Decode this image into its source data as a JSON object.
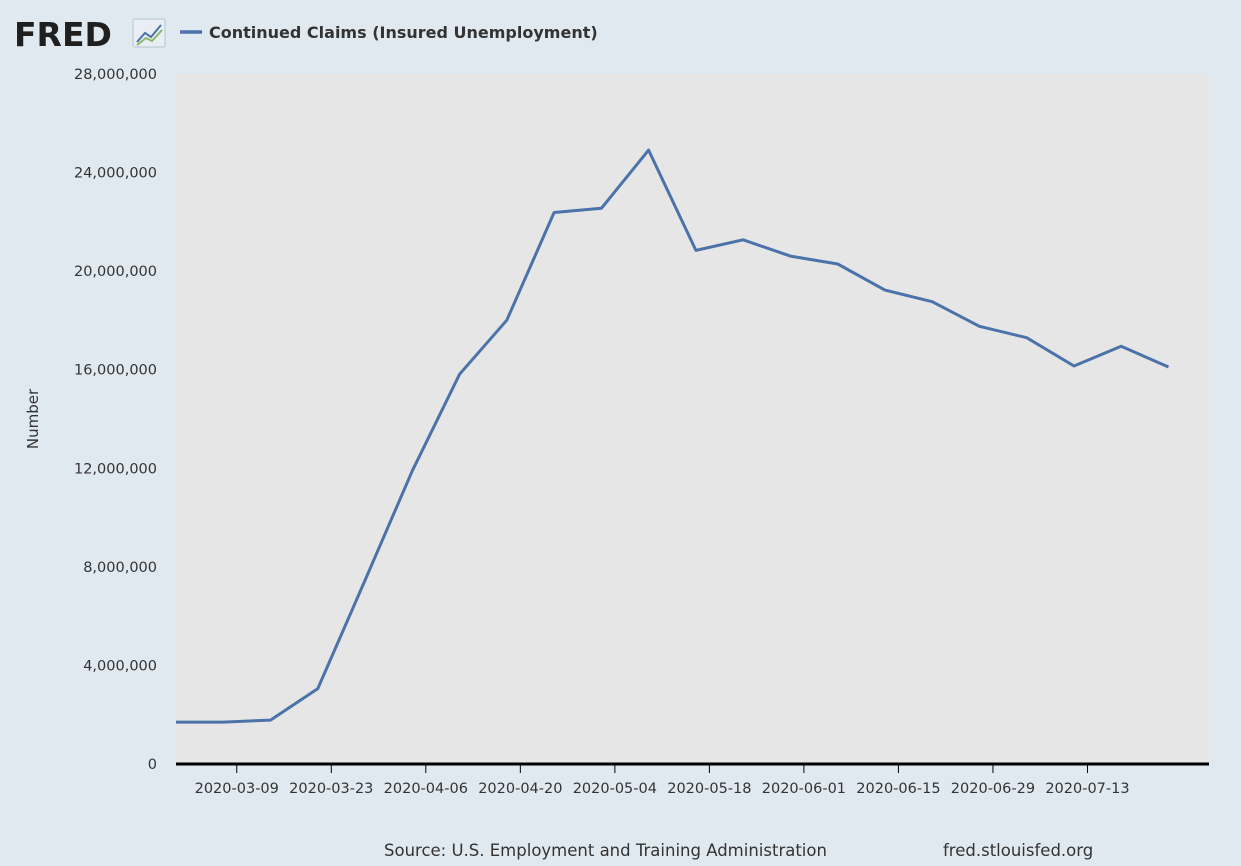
{
  "brand": {
    "logo_text": "FRED"
  },
  "legend": {
    "label": "Continued Claims (Insured Unemployment)"
  },
  "footer": {
    "source": "Source: U.S. Employment and Training Administration",
    "url": "fred.stlouisfed.org"
  },
  "colors": {
    "page_background": "#e1e9f0",
    "plot_background": "#e6e6e6",
    "series": "#4c72aa",
    "axis": "#000000",
    "text": "#333333"
  },
  "chart_data": {
    "type": "line",
    "title": "",
    "xlabel": "",
    "ylabel": "Number",
    "ylim": [
      0,
      28000000
    ],
    "yticks": [
      0,
      4000000,
      8000000,
      12000000,
      16000000,
      20000000,
      24000000,
      28000000
    ],
    "ytick_labels": [
      "0",
      "4,000,000",
      "8,000,000",
      "12,000,000",
      "16,000,000",
      "20,000,000",
      "24,000,000",
      "28,000,000"
    ],
    "xlim": [
      "2020-02-29",
      "2020-07-31"
    ],
    "xtick_labels": [
      "2020-03-09",
      "2020-03-23",
      "2020-04-06",
      "2020-04-20",
      "2020-05-04",
      "2020-05-18",
      "2020-06-01",
      "2020-06-15",
      "2020-06-29",
      "2020-07-13"
    ],
    "grid": false,
    "legend_position": "top-left",
    "series": [
      {
        "name": "Continued Claims (Insured Unemployment)",
        "x": [
          "2020-02-29",
          "2020-03-07",
          "2020-03-14",
          "2020-03-21",
          "2020-03-28",
          "2020-04-04",
          "2020-04-11",
          "2020-04-18",
          "2020-04-25",
          "2020-05-02",
          "2020-05-09",
          "2020-05-16",
          "2020-05-23",
          "2020-05-30",
          "2020-06-06",
          "2020-06-13",
          "2020-06-20",
          "2020-06-27",
          "2020-07-04",
          "2020-07-11",
          "2020-07-18",
          "2020-07-25"
        ],
        "values": [
          1700000,
          1700000,
          1780000,
          3060000,
          7450000,
          11900000,
          15820000,
          18010000,
          22380000,
          22550000,
          24910000,
          20840000,
          21270000,
          20610000,
          20290000,
          19230000,
          18760000,
          17760000,
          17300000,
          16150000,
          16950000,
          16110000
        ]
      }
    ]
  }
}
